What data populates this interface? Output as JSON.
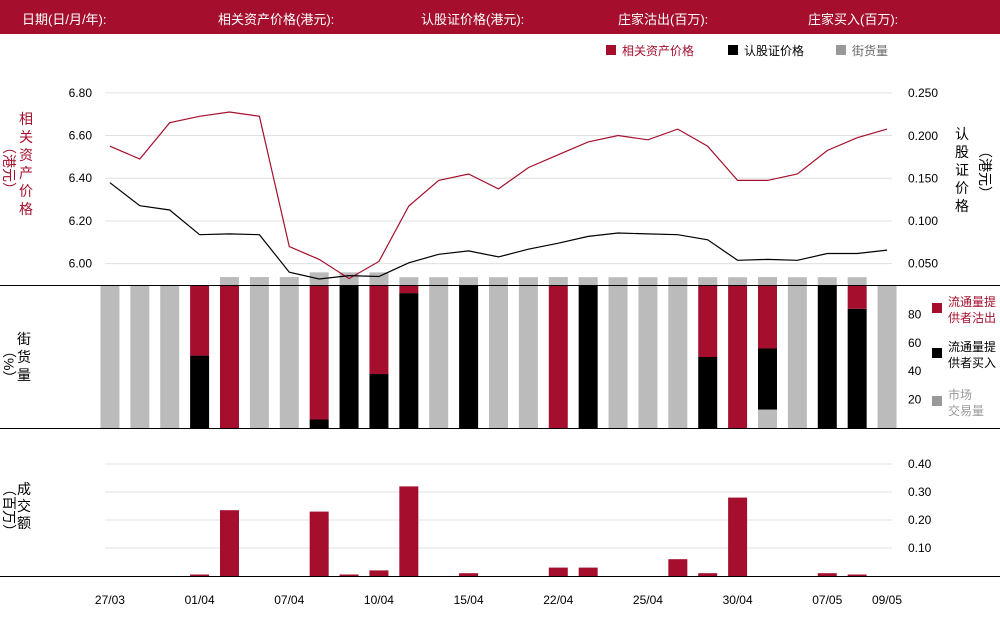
{
  "header": {
    "date_label": "日期(日/月/年):",
    "underlying_label": "相关资产价格(港元):",
    "warrant_label": "认股证价格(港元):",
    "dealer_sell_label": "庄家沽出(百万):",
    "dealer_buy_label": "庄家买入(百万):"
  },
  "legend_top": [
    {
      "label": "相关资产价格",
      "color": "#a50f2d"
    },
    {
      "label": "认股证价格",
      "color": "#000000"
    },
    {
      "label": "街货量",
      "color": "#999999"
    }
  ],
  "legend_side": [
    {
      "label": [
        "流通量提",
        "供者沽出"
      ],
      "color": "#a50f2d"
    },
    {
      "label": [
        "流通量提",
        "供者买入"
      ],
      "color": "#000000"
    },
    {
      "label": [
        "市场",
        "交易量"
      ],
      "color": "#999999"
    }
  ],
  "colors": {
    "red": "#a50f2d",
    "black": "#000000",
    "gray": "#bbbbbb",
    "grid": "#e0e0e0"
  },
  "x_labels": [
    "27/03",
    "01/04",
    "07/04",
    "10/04",
    "15/04",
    "22/04",
    "25/04",
    "30/04",
    "07/05",
    "09/05"
  ],
  "chart_data": [
    {
      "type": "line",
      "left_axis_label": [
        "相",
        "关",
        "资",
        "产",
        "价",
        "格",
        "（港元）"
      ],
      "right_axis_label": [
        "认",
        "股",
        "证",
        "价",
        "格",
        "（港元）"
      ],
      "left_ticks": [
        "6.80",
        "6.60",
        "6.40",
        "6.20",
        "6.00"
      ],
      "right_ticks": [
        "0.250",
        "0.200",
        "0.150",
        "0.100",
        "0.050"
      ],
      "left_ylim": [
        5.9,
        6.86
      ],
      "right_ylim": [
        0.025,
        0.2655
      ],
      "series": [
        {
          "values": [
            6.55,
            6.49,
            6.66,
            6.69,
            6.71,
            6.69,
            6.08,
            6.02,
            5.93,
            6.01,
            6.27,
            6.39,
            6.42,
            6.35,
            6.45,
            6.51,
            6.57,
            6.6,
            6.58,
            6.63,
            6.55,
            6.39,
            6.39,
            6.42,
            6.53,
            6.59,
            6.63
          ]
        },
        {
          "values": [
            0.145,
            0.118,
            0.113,
            0.084,
            0.085,
            0.084,
            0.04,
            0.032,
            0.036,
            0.035,
            0.051,
            0.061,
            0.065,
            0.058,
            0.067,
            0.074,
            0.082,
            0.086,
            0.085,
            0.084,
            0.078,
            0.054,
            0.055,
            0.054,
            0.062,
            0.062,
            0.066
          ]
        }
      ],
      "street_volume_bars": [
        0,
        0,
        0,
        0,
        6.3,
        6.3,
        6.3,
        9.6,
        9.6,
        9.6,
        6.2,
        6.2,
        6.2,
        6.2,
        6.2,
        6.3,
        6.2,
        6.2,
        6.2,
        6.2,
        6.2,
        6.2,
        6.3,
        6.2,
        6.2,
        6.2,
        0
      ]
    },
    {
      "type": "bar",
      "axis_label": [
        "街",
        "货",
        "量",
        "（%）"
      ],
      "ticks": [
        "80",
        "60",
        "40",
        "20"
      ],
      "ylim": [
        0,
        100
      ],
      "series": [
        {
          "values": [
            0,
            0,
            0,
            49,
            100,
            0,
            0,
            94,
            0,
            62,
            5,
            0,
            0,
            0,
            0,
            100,
            0,
            0,
            0,
            0,
            50,
            100,
            44,
            0,
            0,
            16,
            0
          ]
        },
        {
          "values": [
            0,
            0,
            0,
            51,
            0,
            0,
            0,
            6,
            100,
            38,
            95,
            0,
            100,
            0,
            0,
            0,
            100,
            0,
            0,
            0,
            50,
            0,
            43,
            0,
            100,
            84,
            0
          ]
        },
        {
          "values": [
            100,
            100,
            100,
            0,
            0,
            100,
            100,
            0,
            0,
            0,
            0,
            100,
            0,
            100,
            100,
            0,
            0,
            100,
            100,
            100,
            0,
            0,
            13,
            100,
            0,
            0,
            100
          ]
        }
      ]
    },
    {
      "type": "bar",
      "axis_label": [
        "成",
        "交",
        "额",
        "（百万）"
      ],
      "ticks": [
        "0.40",
        "0.30",
        "0.20",
        "0.10"
      ],
      "ylim": [
        0,
        0.4
      ],
      "values": [
        0,
        0,
        0,
        0.005,
        0.235,
        0,
        0,
        0.23,
        0.005,
        0.02,
        0.32,
        0,
        0.01,
        0,
        0,
        0.03,
        0.03,
        0,
        0,
        0.06,
        0.01,
        0.28,
        0,
        0,
        0.01,
        0.005,
        0
      ]
    }
  ]
}
